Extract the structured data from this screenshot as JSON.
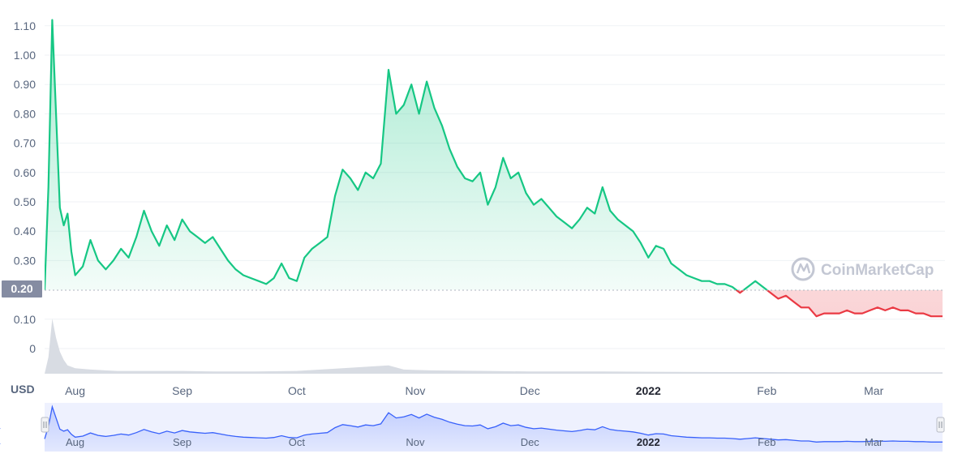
{
  "chart_data": {
    "type": "line",
    "unit": "USD",
    "watermark": "CoinMarketCap",
    "current_marker": {
      "label": "0.20",
      "value": 0.2
    },
    "y_ticks": [
      "1.10",
      "1.00",
      "0.90",
      "0.80",
      "0.70",
      "0.60",
      "0.50",
      "0.40",
      "0.30",
      "0.10",
      "0"
    ],
    "x_ticks": [
      {
        "label": "Aug",
        "date": "2021-08-01",
        "bold": false
      },
      {
        "label": "Sep",
        "date": "2021-09-01",
        "bold": false
      },
      {
        "label": "Oct",
        "date": "2021-10-01",
        "bold": false
      },
      {
        "label": "Nov",
        "date": "2021-11-01",
        "bold": false
      },
      {
        "label": "Dec",
        "date": "2021-12-01",
        "bold": false
      },
      {
        "label": "2022",
        "date": "2022-01-01",
        "bold": true
      },
      {
        "label": "Feb",
        "date": "2022-02-01",
        "bold": false
      },
      {
        "label": "Mar",
        "date": "2022-03-01",
        "bold": false
      }
    ],
    "x_range": [
      "2021-07-27",
      "2022-03-19"
    ],
    "ylim": [
      -0.09,
      1.13
    ],
    "baseline_value": 0.2,
    "colors": {
      "up": "#16c784",
      "down": "#ea3943",
      "volume": "#d8dce3",
      "navigator": "#3861fb"
    },
    "price_series": [
      [
        "2021-07-27",
        0.2
      ],
      [
        "2021-07-28",
        0.55
      ],
      [
        "2021-07-29",
        1.12
      ],
      [
        "2021-07-30",
        0.8
      ],
      [
        "2021-07-31",
        0.48
      ],
      [
        "2021-08-01",
        0.42
      ],
      [
        "2021-08-02",
        0.46
      ],
      [
        "2021-08-03",
        0.33
      ],
      [
        "2021-08-04",
        0.25
      ],
      [
        "2021-08-06",
        0.28
      ],
      [
        "2021-08-08",
        0.37
      ],
      [
        "2021-08-10",
        0.3
      ],
      [
        "2021-08-12",
        0.27
      ],
      [
        "2021-08-14",
        0.3
      ],
      [
        "2021-08-16",
        0.34
      ],
      [
        "2021-08-18",
        0.31
      ],
      [
        "2021-08-20",
        0.38
      ],
      [
        "2021-08-22",
        0.47
      ],
      [
        "2021-08-24",
        0.4
      ],
      [
        "2021-08-26",
        0.35
      ],
      [
        "2021-08-28",
        0.42
      ],
      [
        "2021-08-30",
        0.37
      ],
      [
        "2021-09-01",
        0.44
      ],
      [
        "2021-09-03",
        0.4
      ],
      [
        "2021-09-05",
        0.38
      ],
      [
        "2021-09-07",
        0.36
      ],
      [
        "2021-09-09",
        0.38
      ],
      [
        "2021-09-11",
        0.34
      ],
      [
        "2021-09-13",
        0.3
      ],
      [
        "2021-09-15",
        0.27
      ],
      [
        "2021-09-17",
        0.25
      ],
      [
        "2021-09-19",
        0.24
      ],
      [
        "2021-09-21",
        0.23
      ],
      [
        "2021-09-23",
        0.22
      ],
      [
        "2021-09-25",
        0.24
      ],
      [
        "2021-09-27",
        0.29
      ],
      [
        "2021-09-29",
        0.24
      ],
      [
        "2021-10-01",
        0.23
      ],
      [
        "2021-10-03",
        0.31
      ],
      [
        "2021-10-05",
        0.34
      ],
      [
        "2021-10-07",
        0.36
      ],
      [
        "2021-10-09",
        0.38
      ],
      [
        "2021-10-11",
        0.52
      ],
      [
        "2021-10-13",
        0.61
      ],
      [
        "2021-10-15",
        0.58
      ],
      [
        "2021-10-17",
        0.54
      ],
      [
        "2021-10-19",
        0.6
      ],
      [
        "2021-10-21",
        0.58
      ],
      [
        "2021-10-23",
        0.63
      ],
      [
        "2021-10-25",
        0.95
      ],
      [
        "2021-10-27",
        0.8
      ],
      [
        "2021-10-29",
        0.83
      ],
      [
        "2021-10-31",
        0.9
      ],
      [
        "2021-11-02",
        0.8
      ],
      [
        "2021-11-04",
        0.91
      ],
      [
        "2021-11-06",
        0.82
      ],
      [
        "2021-11-08",
        0.76
      ],
      [
        "2021-11-10",
        0.68
      ],
      [
        "2021-11-12",
        0.62
      ],
      [
        "2021-11-14",
        0.58
      ],
      [
        "2021-11-16",
        0.57
      ],
      [
        "2021-11-18",
        0.6
      ],
      [
        "2021-11-20",
        0.49
      ],
      [
        "2021-11-22",
        0.55
      ],
      [
        "2021-11-24",
        0.65
      ],
      [
        "2021-11-26",
        0.58
      ],
      [
        "2021-11-28",
        0.6
      ],
      [
        "2021-11-30",
        0.53
      ],
      [
        "2021-12-02",
        0.49
      ],
      [
        "2021-12-04",
        0.51
      ],
      [
        "2021-12-06",
        0.48
      ],
      [
        "2021-12-08",
        0.45
      ],
      [
        "2021-12-10",
        0.43
      ],
      [
        "2021-12-12",
        0.41
      ],
      [
        "2021-12-14",
        0.44
      ],
      [
        "2021-12-16",
        0.48
      ],
      [
        "2021-12-18",
        0.46
      ],
      [
        "2021-12-20",
        0.55
      ],
      [
        "2021-12-22",
        0.47
      ],
      [
        "2021-12-24",
        0.44
      ],
      [
        "2021-12-26",
        0.42
      ],
      [
        "2021-12-28",
        0.4
      ],
      [
        "2021-12-30",
        0.36
      ],
      [
        "2022-01-01",
        0.31
      ],
      [
        "2022-01-03",
        0.35
      ],
      [
        "2022-01-05",
        0.34
      ],
      [
        "2022-01-07",
        0.29
      ],
      [
        "2022-01-09",
        0.27
      ],
      [
        "2022-01-11",
        0.25
      ],
      [
        "2022-01-13",
        0.24
      ],
      [
        "2022-01-15",
        0.23
      ],
      [
        "2022-01-17",
        0.23
      ],
      [
        "2022-01-19",
        0.22
      ],
      [
        "2022-01-21",
        0.22
      ],
      [
        "2022-01-23",
        0.21
      ],
      [
        "2022-01-25",
        0.19
      ],
      [
        "2022-01-27",
        0.21
      ],
      [
        "2022-01-29",
        0.23
      ],
      [
        "2022-01-31",
        0.21
      ],
      [
        "2022-02-02",
        0.19
      ],
      [
        "2022-02-04",
        0.17
      ],
      [
        "2022-02-06",
        0.18
      ],
      [
        "2022-02-08",
        0.16
      ],
      [
        "2022-02-10",
        0.14
      ],
      [
        "2022-02-12",
        0.14
      ],
      [
        "2022-02-14",
        0.11
      ],
      [
        "2022-02-16",
        0.12
      ],
      [
        "2022-02-18",
        0.12
      ],
      [
        "2022-02-20",
        0.12
      ],
      [
        "2022-02-22",
        0.13
      ],
      [
        "2022-02-24",
        0.12
      ],
      [
        "2022-02-26",
        0.12
      ],
      [
        "2022-02-28",
        0.13
      ],
      [
        "2022-03-02",
        0.14
      ],
      [
        "2022-03-04",
        0.13
      ],
      [
        "2022-03-06",
        0.14
      ],
      [
        "2022-03-08",
        0.13
      ],
      [
        "2022-03-10",
        0.13
      ],
      [
        "2022-03-12",
        0.12
      ],
      [
        "2022-03-14",
        0.12
      ],
      [
        "2022-03-16",
        0.11
      ],
      [
        "2022-03-19",
        0.11
      ]
    ],
    "volume_series": [
      [
        "2021-07-28",
        0.06
      ],
      [
        "2021-07-29",
        0.2
      ],
      [
        "2021-07-30",
        0.13
      ],
      [
        "2021-07-31",
        0.08
      ],
      [
        "2021-08-01",
        0.05
      ],
      [
        "2021-08-02",
        0.03
      ],
      [
        "2021-08-04",
        0.02
      ],
      [
        "2021-08-08",
        0.015
      ],
      [
        "2021-08-15",
        0.01
      ],
      [
        "2021-08-22",
        0.01
      ],
      [
        "2021-09-01",
        0.01
      ],
      [
        "2021-09-10",
        0.008
      ],
      [
        "2021-09-20",
        0.008
      ],
      [
        "2021-10-01",
        0.01
      ],
      [
        "2021-10-13",
        0.02
      ],
      [
        "2021-10-25",
        0.03
      ],
      [
        "2021-10-29",
        0.015
      ],
      [
        "2021-11-05",
        0.012
      ],
      [
        "2021-11-20",
        0.01
      ],
      [
        "2021-12-01",
        0.008
      ],
      [
        "2021-12-20",
        0.008
      ],
      [
        "2022-01-01",
        0.007
      ],
      [
        "2022-01-20",
        0.006
      ],
      [
        "2022-02-01",
        0.006
      ],
      [
        "2022-02-20",
        0.005
      ],
      [
        "2022-03-01",
        0.005
      ],
      [
        "2022-03-19",
        0.005
      ]
    ]
  }
}
